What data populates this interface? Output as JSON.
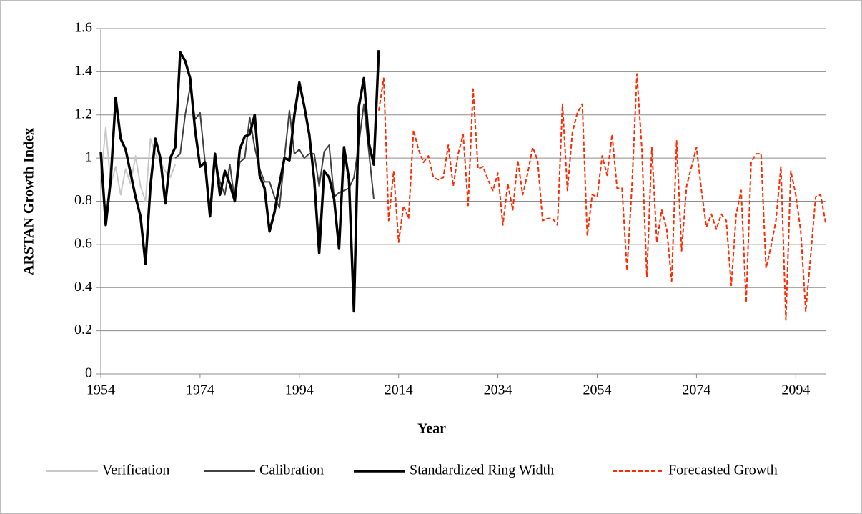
{
  "chart_data": {
    "type": "line",
    "x_label": "Year",
    "y_label": "ARSTAN Growth Index",
    "xlim": [
      1954,
      2100
    ],
    "xticks": [
      1954,
      1974,
      1994,
      2014,
      2034,
      2054,
      2074,
      2094
    ],
    "ylim": [
      0,
      1.6
    ],
    "yticks": [
      0,
      0.2,
      0.4,
      0.6,
      0.8,
      1,
      1.2,
      1.4,
      1.6
    ],
    "grid": true,
    "legend": "bottom",
    "series": [
      {
        "name": "Verification",
        "color": "#c8c8c8",
        "style": "solid",
        "x": [
          1954,
          1955,
          1956,
          1957,
          1958,
          1959,
          1960,
          1961,
          1962,
          1963,
          1964,
          1965,
          1966,
          1967,
          1968,
          1969
        ],
        "values": [
          0.9,
          1.14,
          0.88,
          0.96,
          0.83,
          0.95,
          0.88,
          1.01,
          0.87,
          0.8,
          1.09,
          1.02,
          0.98,
          0.94,
          0.91,
          0.97
        ]
      },
      {
        "name": "Calibration",
        "color": "#404040",
        "style": "solid",
        "x": [
          1969,
          1970,
          1971,
          1972,
          1973,
          1974,
          1975,
          1976,
          1977,
          1978,
          1979,
          1980,
          1981,
          1982,
          1983,
          1984,
          1985,
          1986,
          1987,
          1988,
          1989,
          1990,
          1991,
          1992,
          1993,
          1994,
          1995,
          1996,
          1997,
          1998,
          1999,
          2000,
          2001,
          2002,
          2003,
          2004,
          2005,
          2006,
          2007,
          2008,
          2009
        ],
        "values": [
          1.0,
          1.02,
          1.2,
          1.33,
          1.18,
          1.21,
          0.98,
          0.75,
          1.0,
          0.89,
          0.83,
          0.97,
          0.8,
          0.98,
          1.0,
          1.19,
          1.05,
          0.95,
          0.89,
          0.89,
          0.82,
          0.77,
          1.0,
          1.22,
          1.02,
          1.04,
          1.0,
          1.02,
          1.02,
          0.87,
          1.03,
          1.06,
          0.82,
          0.84,
          0.85,
          0.86,
          0.91,
          1.07,
          1.25,
          1.03,
          0.81
        ]
      },
      {
        "name": "Standardized Ring Width",
        "color": "#000000",
        "style": "bold",
        "x": [
          1954,
          1955,
          1956,
          1957,
          1958,
          1959,
          1960,
          1961,
          1962,
          1963,
          1964,
          1965,
          1966,
          1967,
          1968,
          1969,
          1970,
          1971,
          1972,
          1973,
          1974,
          1975,
          1976,
          1977,
          1978,
          1979,
          1980,
          1981,
          1982,
          1983,
          1984,
          1985,
          1986,
          1987,
          1988,
          1989,
          1990,
          1991,
          1992,
          1993,
          1994,
          1995,
          1996,
          1997,
          1998,
          1999,
          2000,
          2001,
          2002,
          2003,
          2004,
          2005,
          2006,
          2007,
          2008,
          2009,
          2010
        ],
        "values": [
          1.03,
          0.69,
          0.9,
          1.28,
          1.09,
          1.04,
          0.93,
          0.82,
          0.73,
          0.51,
          0.87,
          1.09,
          1.0,
          0.79,
          1.0,
          1.05,
          1.49,
          1.45,
          1.37,
          1.13,
          0.96,
          0.98,
          0.73,
          1.02,
          0.83,
          0.94,
          0.88,
          0.8,
          1.04,
          1.1,
          1.11,
          1.2,
          0.92,
          0.86,
          0.66,
          0.75,
          0.88,
          1.0,
          0.99,
          1.2,
          1.35,
          1.24,
          1.11,
          0.9,
          0.56,
          0.94,
          0.91,
          0.81,
          0.58,
          1.05,
          0.9,
          0.29,
          1.24,
          1.37,
          1.07,
          0.97,
          1.5
        ]
      },
      {
        "name": "Forecasted Growth",
        "color": "#ff2a00",
        "style": "dashed",
        "x": [
          2010,
          2011,
          2012,
          2013,
          2014,
          2015,
          2016,
          2017,
          2018,
          2019,
          2020,
          2021,
          2022,
          2023,
          2024,
          2025,
          2026,
          2027,
          2028,
          2029,
          2030,
          2031,
          2032,
          2033,
          2034,
          2035,
          2036,
          2037,
          2038,
          2039,
          2040,
          2041,
          2042,
          2043,
          2044,
          2045,
          2046,
          2047,
          2048,
          2049,
          2050,
          2051,
          2052,
          2053,
          2054,
          2055,
          2056,
          2057,
          2058,
          2059,
          2060,
          2061,
          2062,
          2063,
          2064,
          2065,
          2066,
          2067,
          2068,
          2069,
          2070,
          2071,
          2072,
          2073,
          2074,
          2075,
          2076,
          2077,
          2078,
          2079,
          2080,
          2081,
          2082,
          2083,
          2084,
          2085,
          2086,
          2087,
          2088,
          2089,
          2090,
          2091,
          2092,
          2093,
          2094,
          2095,
          2096,
          2097,
          2098,
          2099,
          2100
        ],
        "values": [
          1.22,
          1.37,
          0.71,
          0.94,
          0.61,
          0.78,
          0.72,
          1.13,
          1.04,
          0.98,
          1.01,
          0.91,
          0.9,
          0.91,
          1.06,
          0.87,
          1.02,
          1.11,
          0.78,
          1.32,
          0.95,
          0.96,
          0.9,
          0.85,
          0.93,
          0.69,
          0.88,
          0.76,
          0.99,
          0.83,
          0.93,
          1.05,
          0.99,
          0.71,
          0.72,
          0.72,
          0.69,
          1.25,
          0.85,
          1.12,
          1.21,
          1.25,
          0.64,
          0.83,
          0.82,
          1.01,
          0.92,
          1.11,
          0.86,
          0.86,
          0.48,
          0.87,
          1.39,
          1.04,
          0.45,
          1.05,
          0.61,
          0.76,
          0.67,
          0.43,
          1.08,
          0.57,
          0.87,
          0.96,
          1.05,
          0.85,
          0.68,
          0.74,
          0.67,
          0.74,
          0.71,
          0.41,
          0.74,
          0.85,
          0.33,
          0.98,
          1.02,
          1.02,
          0.49,
          0.59,
          0.71,
          0.96,
          0.25,
          0.94,
          0.83,
          0.66,
          0.29,
          0.55,
          0.82,
          0.83,
          0.7
        ]
      }
    ]
  }
}
